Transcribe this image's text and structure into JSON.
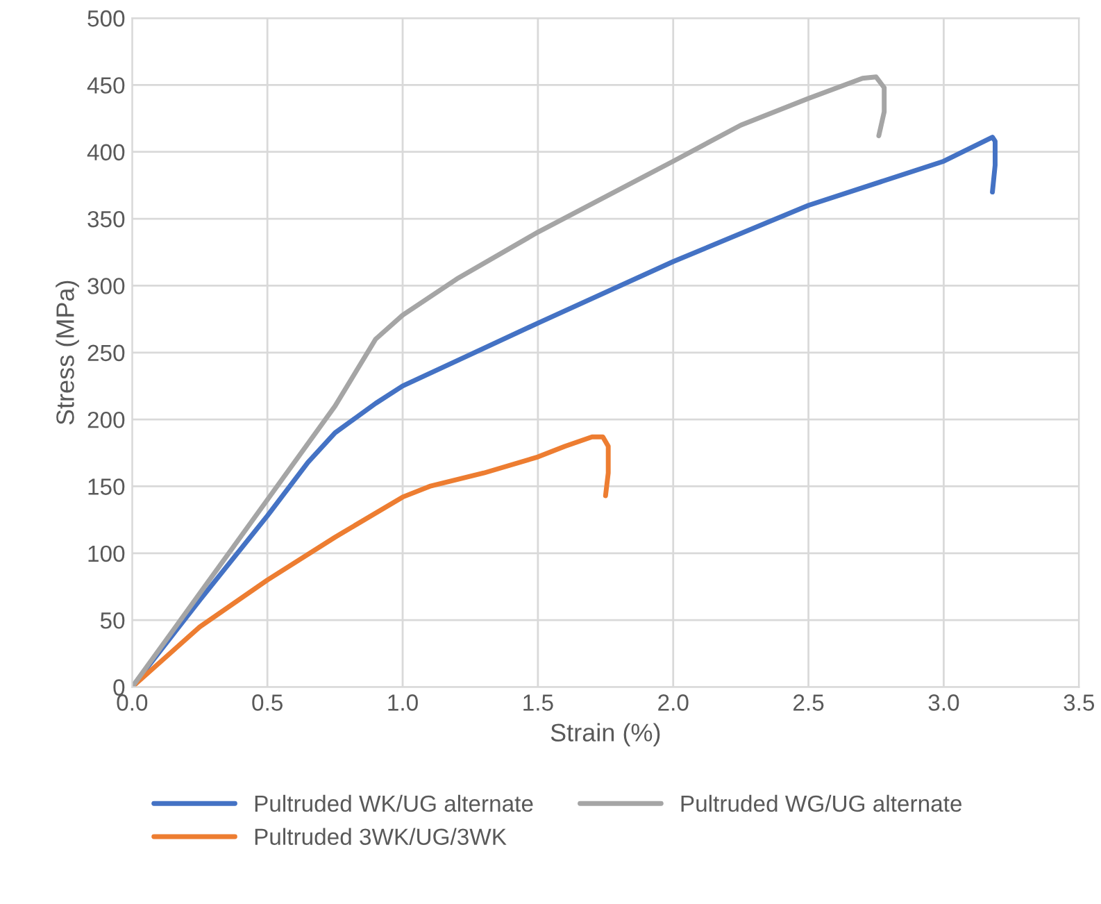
{
  "chart_data": {
    "type": "line",
    "xlabel": "Strain (%)",
    "ylabel": "Stress (MPa)",
    "xlim": [
      0,
      3.5
    ],
    "ylim": [
      0,
      500
    ],
    "xticks": [
      {
        "value": 0,
        "label": "0.0"
      },
      {
        "value": 0.5,
        "label": "0.5"
      },
      {
        "value": 1,
        "label": "1.0"
      },
      {
        "value": 1.5,
        "label": "1.5"
      },
      {
        "value": 2,
        "label": "2.0"
      },
      {
        "value": 2.5,
        "label": "2.5"
      },
      {
        "value": 3,
        "label": "3.0"
      },
      {
        "value": 3.5,
        "label": "3.5"
      }
    ],
    "yticks": [
      0,
      50,
      100,
      150,
      200,
      250,
      300,
      350,
      400,
      450,
      500
    ],
    "grid": true,
    "legend": "bottom",
    "marker": "none",
    "line_style": "solid",
    "series": [
      {
        "name": "Pultruded WK/UG alternate",
        "color": "#4472c4",
        "x": [
          0,
          0.25,
          0.5,
          0.65,
          0.75,
          0.9,
          1.0,
          1.5,
          2.0,
          2.5,
          3.0,
          3.15,
          3.18,
          3.19,
          3.19,
          3.18
        ],
        "values": [
          0,
          65,
          128,
          168,
          190,
          212,
          225,
          272,
          318,
          360,
          393,
          408,
          411,
          408,
          390,
          370
        ]
      },
      {
        "name": "Pultruded 3WK/UG/3WK",
        "color": "#ed7d31",
        "x": [
          0,
          0.25,
          0.5,
          0.75,
          1.0,
          1.1,
          1.3,
          1.5,
          1.6,
          1.7,
          1.74,
          1.76,
          1.76,
          1.75
        ],
        "values": [
          0,
          45,
          80,
          112,
          142,
          150,
          160,
          172,
          180,
          187,
          187,
          180,
          160,
          143
        ]
      },
      {
        "name": "Pultruded WG/UG alternate",
        "color": "#a5a5a5",
        "x": [
          0,
          0.25,
          0.5,
          0.75,
          0.9,
          1.0,
          1.2,
          1.5,
          2.0,
          2.25,
          2.5,
          2.7,
          2.75,
          2.78,
          2.78,
          2.76
        ],
        "values": [
          0,
          70,
          140,
          210,
          260,
          278,
          305,
          340,
          393,
          420,
          440,
          455,
          456,
          448,
          430,
          412
        ]
      }
    ]
  }
}
